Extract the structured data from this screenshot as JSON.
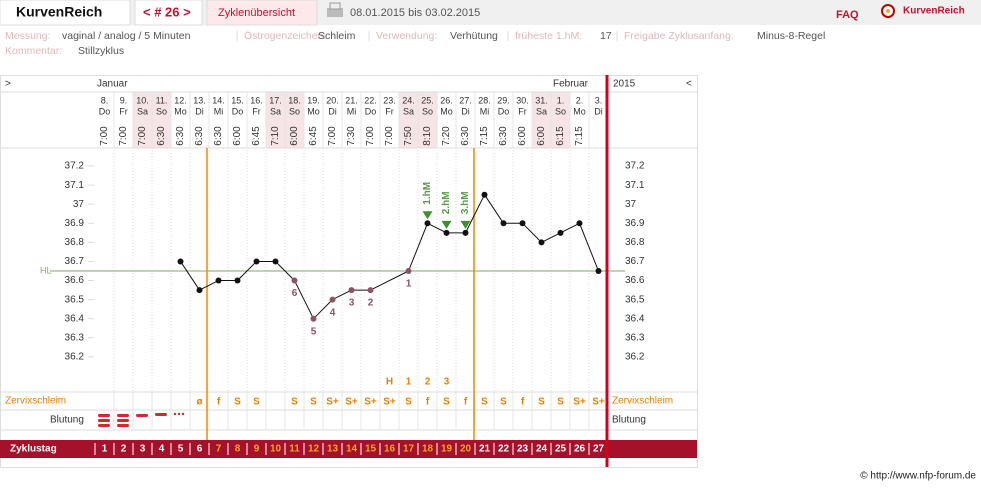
{
  "header": {
    "title": "KurvenReich",
    "cycle_nav": "< # 26 >",
    "overview": "Zyklenübersicht",
    "range": "08.01.2015 bis 03.02.2015",
    "faq": "FAQ",
    "logo": "KurvenReich"
  },
  "info": [
    {
      "label": "Messung:",
      "value": "vaginal / analog / 5 Minuten"
    },
    {
      "label": "Östrogenzeichen:",
      "value": "Schleim"
    },
    {
      "label": "Verwendung:",
      "value": "Verhütung"
    },
    {
      "label": "früheste 1.hM:",
      "value": "17"
    },
    {
      "label": "Freigabe Zyklusanfang:",
      "value": "Minus-8-Regel"
    }
  ],
  "comment": {
    "label": "Kommentar:",
    "value": "Stillzyklus"
  },
  "chart": {
    "left_marker": ">",
    "right_marker": "<",
    "months": [
      "Januar",
      "Februar"
    ],
    "year": "2015",
    "dates": [
      "8.",
      "9.",
      "10.",
      "11.",
      "12.",
      "13.",
      "14.",
      "15.",
      "16.",
      "17.",
      "18.",
      "19.",
      "20.",
      "21.",
      "22.",
      "23.",
      "24.",
      "25.",
      "26.",
      "27.",
      "28.",
      "29.",
      "30.",
      "31.",
      "1.",
      "2.",
      "3."
    ],
    "weekdays": [
      "Do",
      "Fr",
      "Sa",
      "So",
      "Mo",
      "Di",
      "Mi",
      "Do",
      "Fr",
      "Sa",
      "So",
      "Mo",
      "Di",
      "Mi",
      "Do",
      "Fr",
      "Sa",
      "So",
      "Mo",
      "Di",
      "Mi",
      "Do",
      "Fr",
      "Sa",
      "So",
      "Mo",
      "Di"
    ],
    "times": [
      "7:00",
      "7:00",
      "7:00",
      "6:30",
      "6:30",
      "6:30",
      "6:30",
      "6:00",
      "6:45",
      "7:10",
      "6:00",
      "6:45",
      "7:00",
      "7:30",
      "7:00",
      "7:00",
      "7:50",
      "8:10",
      "7:20",
      "6:30",
      "7:15",
      "6:30",
      "6:00",
      "6:00",
      "6:15",
      "7:15",
      null
    ],
    "temperatures": [
      null,
      null,
      null,
      null,
      36.7,
      36.55,
      36.6,
      36.6,
      36.7,
      36.7,
      36.6,
      36.4,
      36.5,
      36.55,
      36.55,
      null,
      36.65,
      36.9,
      36.85,
      36.85,
      37.05,
      36.9,
      36.9,
      36.8,
      36.85,
      36.9,
      36.65
    ],
    "low_counts": [
      null,
      null,
      null,
      null,
      null,
      null,
      null,
      null,
      null,
      null,
      6,
      5,
      4,
      3,
      2,
      null,
      1,
      null,
      null,
      null,
      null,
      null,
      null,
      null,
      null,
      null,
      null
    ],
    "hm_labels": [
      null,
      null,
      null,
      null,
      null,
      null,
      null,
      null,
      null,
      null,
      null,
      null,
      null,
      null,
      null,
      null,
      null,
      "1.hM",
      "2.hM",
      "3.hM",
      null,
      null,
      null,
      null,
      null,
      null,
      null
    ],
    "ylim": [
      36.0,
      37.3
    ],
    "yticks": [
      37.2,
      37.1,
      37,
      36.9,
      36.8,
      36.7,
      36.6,
      36.5,
      36.4,
      36.3,
      36.2
    ],
    "hl_label": "HL",
    "hl": 36.65,
    "peak_labels": [
      null,
      null,
      null,
      null,
      null,
      null,
      null,
      null,
      null,
      null,
      null,
      null,
      null,
      null,
      null,
      "H",
      "1",
      "2",
      "3",
      null,
      null,
      null,
      null,
      null,
      null,
      null,
      null
    ],
    "cervix_label": "Zervixschleim",
    "cervix": [
      null,
      null,
      null,
      null,
      null,
      "ø",
      "f",
      "S",
      "S",
      null,
      "S",
      "S",
      "S+",
      "S+",
      "S+",
      "S+",
      "S",
      "f",
      "S",
      "f",
      "S",
      "S",
      "f",
      "S",
      "S",
      "S+",
      "S+"
    ],
    "bleeding_label": "Blutung",
    "cycle_day_label": "Zyklustag",
    "cycle_days": [
      1,
      2,
      3,
      4,
      5,
      6,
      7,
      8,
      9,
      10,
      11,
      12,
      13,
      14,
      15,
      16,
      17,
      18,
      19,
      20,
      21,
      22,
      23,
      24,
      25,
      26,
      27
    ]
  },
  "footer": "© http://www.nfp-forum.de"
}
